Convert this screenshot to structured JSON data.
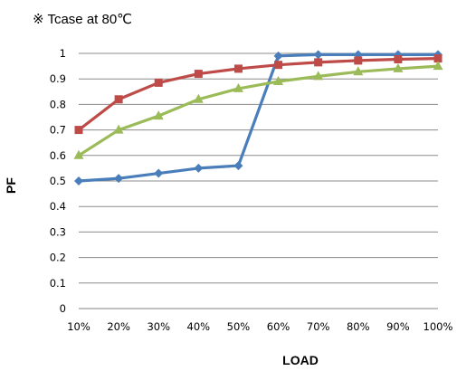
{
  "note": "※ Tcase at 80℃",
  "chart_data": {
    "type": "line",
    "title": "",
    "xlabel": "LOAD",
    "ylabel": "PF",
    "categories": [
      "10%",
      "20%",
      "30%",
      "40%",
      "50%",
      "60%",
      "70%",
      "80%",
      "90%",
      "100%"
    ],
    "ylim": [
      0,
      1
    ],
    "yticks": [
      "0",
      "0.1",
      "0.2",
      "0.3",
      "0.4",
      "0.5",
      "0.6",
      "0.7",
      "0.8",
      "0.9",
      "1"
    ],
    "grid": true,
    "legend": "none",
    "series": [
      {
        "values": [
          0.5,
          0.51,
          0.53,
          0.55,
          0.56,
          0.99,
          0.995,
          0.995,
          0.995,
          0.995
        ],
        "color": "#4a7ebb",
        "marker": "diamond"
      },
      {
        "values": [
          0.7,
          0.82,
          0.885,
          0.92,
          0.94,
          0.955,
          0.965,
          0.972,
          0.977,
          0.98
        ],
        "color": "#be4b48",
        "marker": "square"
      },
      {
        "values": [
          0.6,
          0.7,
          0.755,
          0.82,
          0.862,
          0.89,
          0.91,
          0.928,
          0.94,
          0.95
        ],
        "color": "#9bbb59",
        "marker": "triangle"
      }
    ]
  }
}
